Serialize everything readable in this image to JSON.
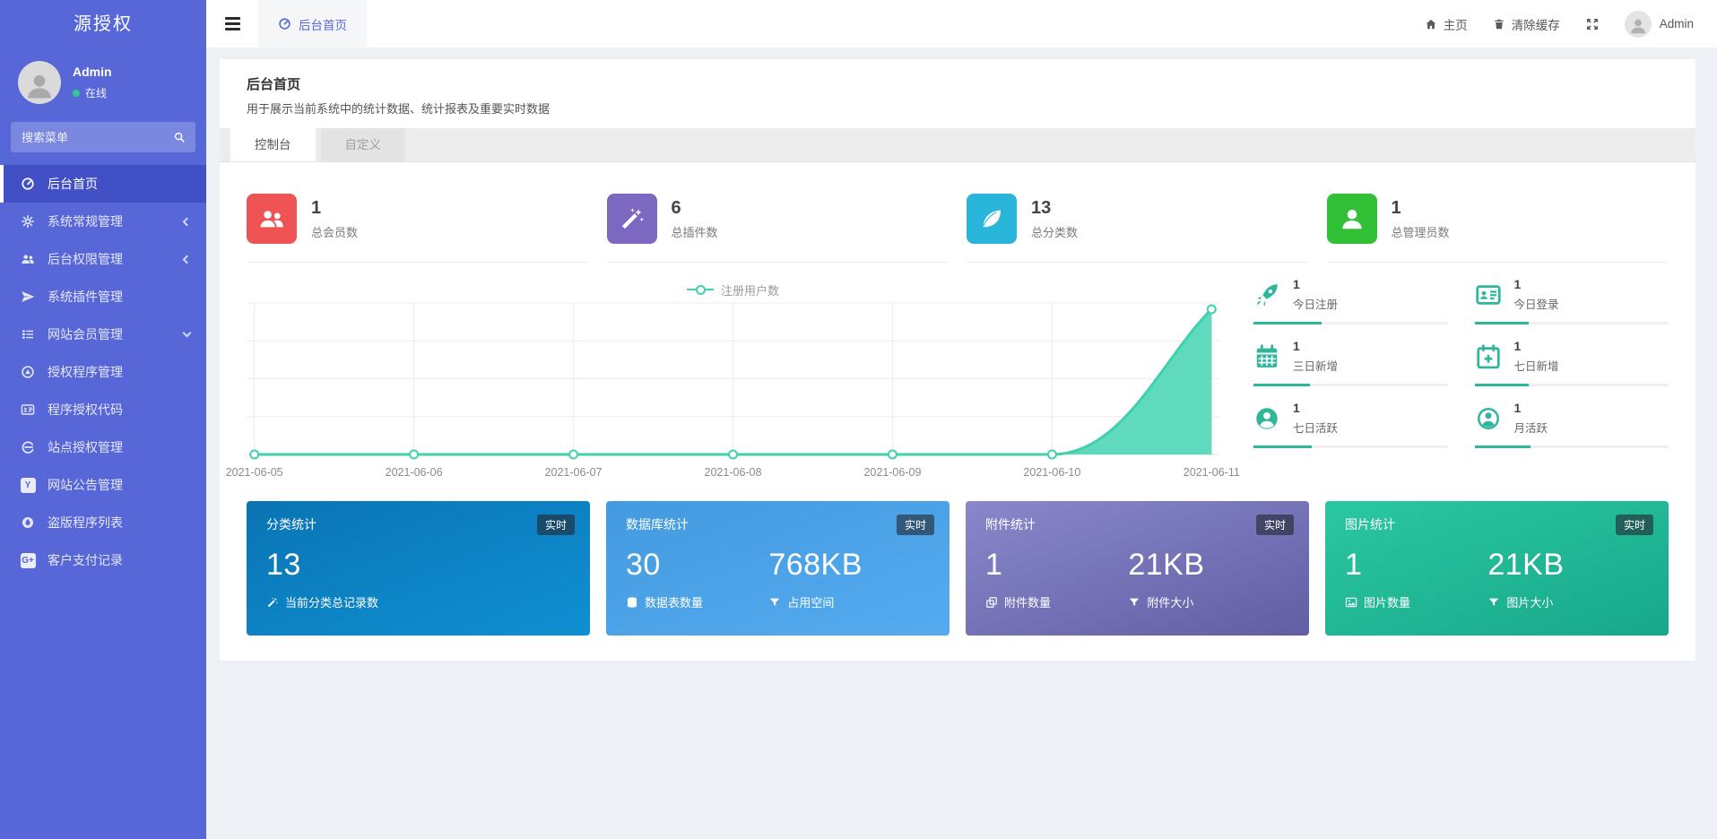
{
  "theme": {
    "sidebar_color": "#5767d8",
    "accent_teal": "#2eb79b"
  },
  "app": {
    "logo": "源授权"
  },
  "sidebar": {
    "user": {
      "name": "Admin",
      "status": "在线"
    },
    "search_placeholder": "搜索菜单",
    "items": [
      {
        "label": "后台首页",
        "icon": "dashboard-icon",
        "active": true
      },
      {
        "label": "系统常规管理",
        "icon": "cogs-icon",
        "expand": "collapsed"
      },
      {
        "label": "后台权限管理",
        "icon": "users-icon",
        "expand": "collapsed"
      },
      {
        "label": "系统插件管理",
        "icon": "paper-plane-icon"
      },
      {
        "label": "网站会员管理",
        "icon": "list-icon",
        "expand": "expanded"
      },
      {
        "label": "授权程序管理",
        "icon": "adn-icon"
      },
      {
        "label": "程序授权代码",
        "icon": "id-card-icon"
      },
      {
        "label": "站点授权管理",
        "icon": "internet-explorer-icon"
      },
      {
        "label": "网站公告管理",
        "icon": "y-square-icon"
      },
      {
        "label": "盗版程序列表",
        "icon": "drop-circle-icon"
      },
      {
        "label": "客户支付记录",
        "icon": "gplus-square-icon"
      }
    ]
  },
  "topbar": {
    "tab": "后台首页",
    "home_label": "主页",
    "clear_cache_label": "清除缓存",
    "user_name": "Admin"
  },
  "page": {
    "title": "后台首页",
    "subtitle": "用于展示当前系统中的统计数据、统计报表及重要实时数据",
    "tabs": [
      {
        "label": "控制台",
        "active": true
      },
      {
        "label": "自定义",
        "active": false
      }
    ]
  },
  "stats": [
    {
      "value": "1",
      "label": "总会员数",
      "color": "#ef5455",
      "icon": "group-icon"
    },
    {
      "value": "6",
      "label": "总插件数",
      "color": "#7c67c1",
      "icon": "magic-wand-icon"
    },
    {
      "value": "13",
      "label": "总分类数",
      "color": "#29b5da",
      "icon": "leaf-icon"
    },
    {
      "value": "1",
      "label": "总管理员数",
      "color": "#32c136",
      "icon": "user-icon"
    }
  ],
  "chart_data": {
    "type": "area",
    "title": "",
    "legend": [
      "注册用户数"
    ],
    "legend_position": "top",
    "x": [
      "2021-06-05",
      "2021-06-06",
      "2021-06-07",
      "2021-06-08",
      "2021-06-09",
      "2021-06-10",
      "2021-06-11"
    ],
    "series": [
      {
        "name": "注册用户数",
        "values": [
          0,
          0,
          0,
          0,
          0,
          0,
          1
        ]
      }
    ],
    "ylim": [
      0,
      1
    ],
    "grid": true,
    "line_color": "#3fd0ae",
    "fill_color": "#52d7b7"
  },
  "mini_stats": [
    {
      "value": "1",
      "label": "今日注册",
      "icon": "rocket-icon",
      "progress_pct": 35
    },
    {
      "value": "1",
      "label": "今日登录",
      "icon": "id-card-icon",
      "progress_pct": 28
    },
    {
      "value": "1",
      "label": "三日新增",
      "icon": "calendar-icon",
      "progress_pct": 29
    },
    {
      "value": "1",
      "label": "七日新增",
      "icon": "calendar-plus-icon",
      "progress_pct": 28
    },
    {
      "value": "1",
      "label": "七日活跃",
      "icon": "user-circle-icon",
      "progress_pct": 30
    },
    {
      "value": "1",
      "label": "月活跃",
      "icon": "user-circle-outline-icon",
      "progress_pct": 29
    }
  ],
  "panels": [
    {
      "title": "分类统计",
      "badge": "实时",
      "gradient": [
        "#0a74b4",
        "#0f90d3"
      ],
      "metrics": [
        {
          "value": "13",
          "label": "当前分类总记录数",
          "icon": "magic-wand-icon"
        }
      ]
    },
    {
      "title": "数据库统计",
      "badge": "实时",
      "gradient": [
        "#449ade",
        "#54abf0"
      ],
      "metrics": [
        {
          "value": "30",
          "label": "数据表数量",
          "icon": "database-icon"
        },
        {
          "value": "768KB",
          "label": "占用空间",
          "icon": "filter-icon"
        }
      ]
    },
    {
      "title": "附件统计",
      "badge": "实时",
      "gradient": [
        "#8a88cb",
        "#615ea4"
      ],
      "metrics": [
        {
          "value": "1",
          "label": "附件数量",
          "icon": "copy-icon"
        },
        {
          "value": "21KB",
          "label": "附件大小",
          "icon": "filter-icon"
        }
      ]
    },
    {
      "title": "图片统计",
      "badge": "实时",
      "gradient": [
        "#2bc7a2",
        "#17a88a"
      ],
      "metrics": [
        {
          "value": "1",
          "label": "图片数量",
          "icon": "image-icon"
        },
        {
          "value": "21KB",
          "label": "图片大小",
          "icon": "filter-icon"
        }
      ]
    }
  ]
}
